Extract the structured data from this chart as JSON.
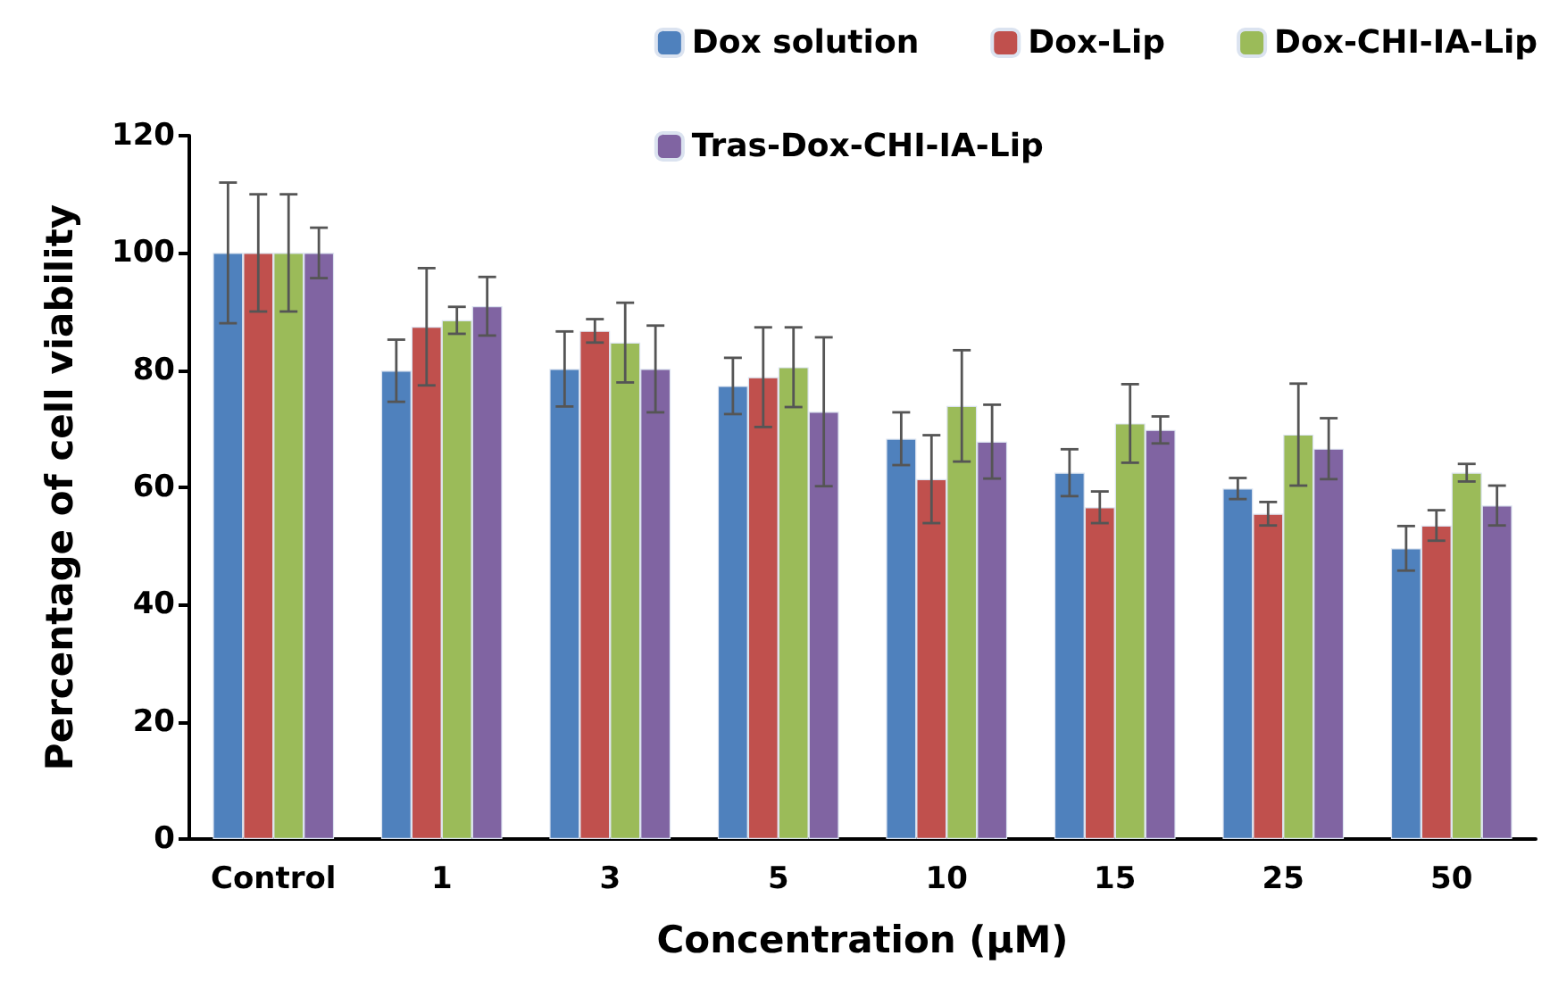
{
  "chart_data": {
    "type": "bar",
    "xlabel": "Concentration (µM)",
    "ylabel": "Percentage of cell viability",
    "categories": [
      "Control",
      "1",
      "3",
      "5",
      "10",
      "15",
      "25",
      "50"
    ],
    "series": [
      {
        "name": "Dox solution",
        "color": "#4f81bd",
        "values": [
          100,
          79.9,
          80.2,
          77.3,
          68.3,
          62.5,
          59.8,
          49.6
        ],
        "errors": [
          12,
          5.3,
          6.4,
          4.8,
          4.5,
          4,
          1.8,
          3.8
        ]
      },
      {
        "name": "Dox-Lip",
        "color": "#c0504d",
        "values": [
          100,
          87.4,
          86.7,
          78.8,
          61.4,
          56.6,
          55.5,
          53.5
        ],
        "errors": [
          10,
          10,
          2,
          8.5,
          7.5,
          2.7,
          2,
          2.6
        ]
      },
      {
        "name": "Dox-CHI-IA-Lip",
        "color": "#9bbb59",
        "values": [
          100,
          88.5,
          84.7,
          80.5,
          73.9,
          70.9,
          69,
          62.5
        ],
        "errors": [
          10,
          2.3,
          6.8,
          6.8,
          9.5,
          6.7,
          8.7,
          1.5
        ]
      },
      {
        "name": "Tras-Dox-CHI-IA-Lip",
        "color": "#8064a2",
        "values": [
          100,
          90.9,
          80.2,
          72.9,
          67.8,
          69.8,
          66.6,
          56.9
        ],
        "errors": [
          4.3,
          5,
          7.4,
          12.7,
          6.3,
          2.3,
          5.2,
          3.4
        ]
      }
    ],
    "ylim": [
      0,
      120
    ],
    "yticks": [
      0,
      20,
      40,
      60,
      80,
      100,
      120
    ],
    "grid": false,
    "legend": "top right"
  }
}
